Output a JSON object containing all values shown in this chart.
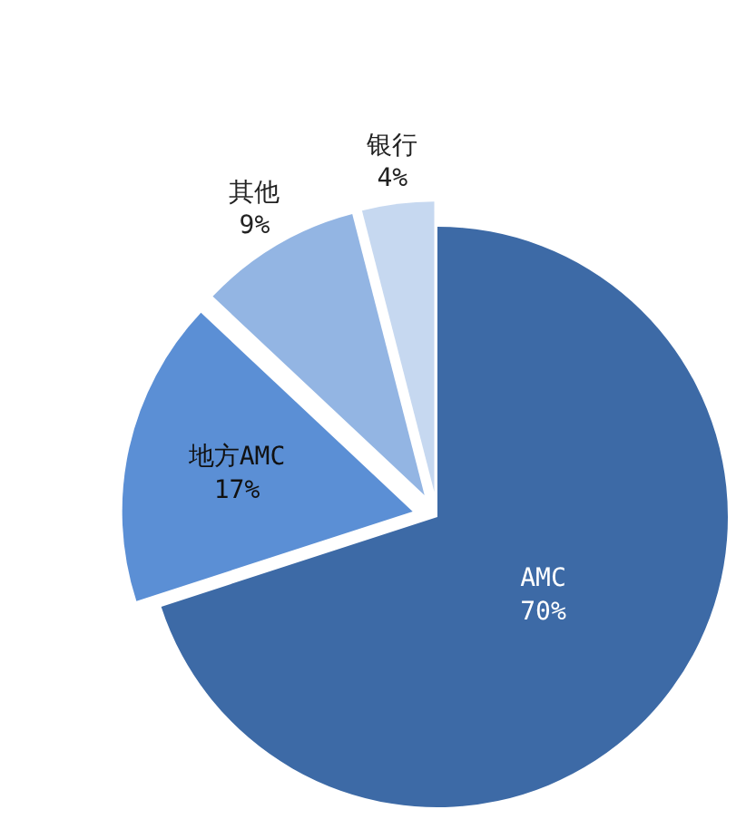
{
  "chart_data": {
    "type": "pie",
    "categories": [
      "AMC",
      "地方AMC",
      "其他",
      "银行"
    ],
    "values": [
      70,
      17,
      9,
      4
    ],
    "value_labels": [
      "70%",
      "17%",
      "9%",
      "4%"
    ],
    "colors": [
      "#3d6aa6",
      "#5b8fd5",
      "#93b5e3",
      "#c6d8f0"
    ]
  }
}
